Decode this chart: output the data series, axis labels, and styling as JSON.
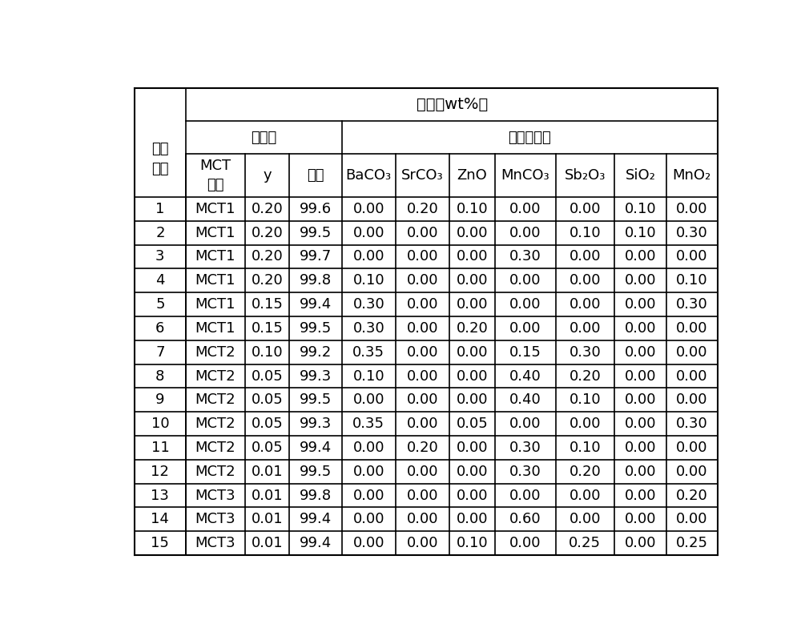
{
  "title_main": "组成（wt%）",
  "title_sub1": "主成分",
  "title_sub2": "改性添加物",
  "sample_label": "试样\n编号",
  "mct_label": "MCT\n代号",
  "y_label": "y",
  "content_label": "含量",
  "col_headers": [
    "BaCO₃",
    "SrCO₃",
    "ZnO",
    "MnCO₃",
    "Sb₂O₃",
    "SiO₂",
    "MnO₂"
  ],
  "rows": [
    [
      "1",
      "MCT1",
      "0.20",
      "99.6",
      "0.00",
      "0.20",
      "0.10",
      "0.00",
      "0.00",
      "0.10",
      "0.00"
    ],
    [
      "2",
      "MCT1",
      "0.20",
      "99.5",
      "0.00",
      "0.00",
      "0.00",
      "0.00",
      "0.10",
      "0.10",
      "0.30"
    ],
    [
      "3",
      "MCT1",
      "0.20",
      "99.7",
      "0.00",
      "0.00",
      "0.00",
      "0.30",
      "0.00",
      "0.00",
      "0.00"
    ],
    [
      "4",
      "MCT1",
      "0.20",
      "99.8",
      "0.10",
      "0.00",
      "0.00",
      "0.00",
      "0.00",
      "0.00",
      "0.10"
    ],
    [
      "5",
      "MCT1",
      "0.15",
      "99.4",
      "0.30",
      "0.00",
      "0.00",
      "0.00",
      "0.00",
      "0.00",
      "0.30"
    ],
    [
      "6",
      "MCT1",
      "0.15",
      "99.5",
      "0.30",
      "0.00",
      "0.20",
      "0.00",
      "0.00",
      "0.00",
      "0.00"
    ],
    [
      "7",
      "MCT2",
      "0.10",
      "99.2",
      "0.35",
      "0.00",
      "0.00",
      "0.15",
      "0.30",
      "0.00",
      "0.00"
    ],
    [
      "8",
      "MCT2",
      "0.05",
      "99.3",
      "0.10",
      "0.00",
      "0.00",
      "0.40",
      "0.20",
      "0.00",
      "0.00"
    ],
    [
      "9",
      "MCT2",
      "0.05",
      "99.5",
      "0.00",
      "0.00",
      "0.00",
      "0.40",
      "0.10",
      "0.00",
      "0.00"
    ],
    [
      "10",
      "MCT2",
      "0.05",
      "99.3",
      "0.35",
      "0.00",
      "0.05",
      "0.00",
      "0.00",
      "0.00",
      "0.30"
    ],
    [
      "11",
      "MCT2",
      "0.05",
      "99.4",
      "0.00",
      "0.20",
      "0.00",
      "0.30",
      "0.10",
      "0.00",
      "0.00"
    ],
    [
      "12",
      "MCT2",
      "0.01",
      "99.5",
      "0.00",
      "0.00",
      "0.00",
      "0.30",
      "0.20",
      "0.00",
      "0.00"
    ],
    [
      "13",
      "MCT3",
      "0.01",
      "99.8",
      "0.00",
      "0.00",
      "0.00",
      "0.00",
      "0.00",
      "0.00",
      "0.20"
    ],
    [
      "14",
      "MCT3",
      "0.01",
      "99.4",
      "0.00",
      "0.00",
      "0.00",
      "0.60",
      "0.00",
      "0.00",
      "0.00"
    ],
    [
      "15",
      "MCT3",
      "0.01",
      "99.4",
      "0.00",
      "0.00",
      "0.10",
      "0.00",
      "0.25",
      "0.00",
      "0.25"
    ]
  ],
  "bg_color": "#ffffff",
  "line_color": "#000000",
  "font_size_data": 13,
  "font_size_header": 13,
  "font_size_title": 14
}
